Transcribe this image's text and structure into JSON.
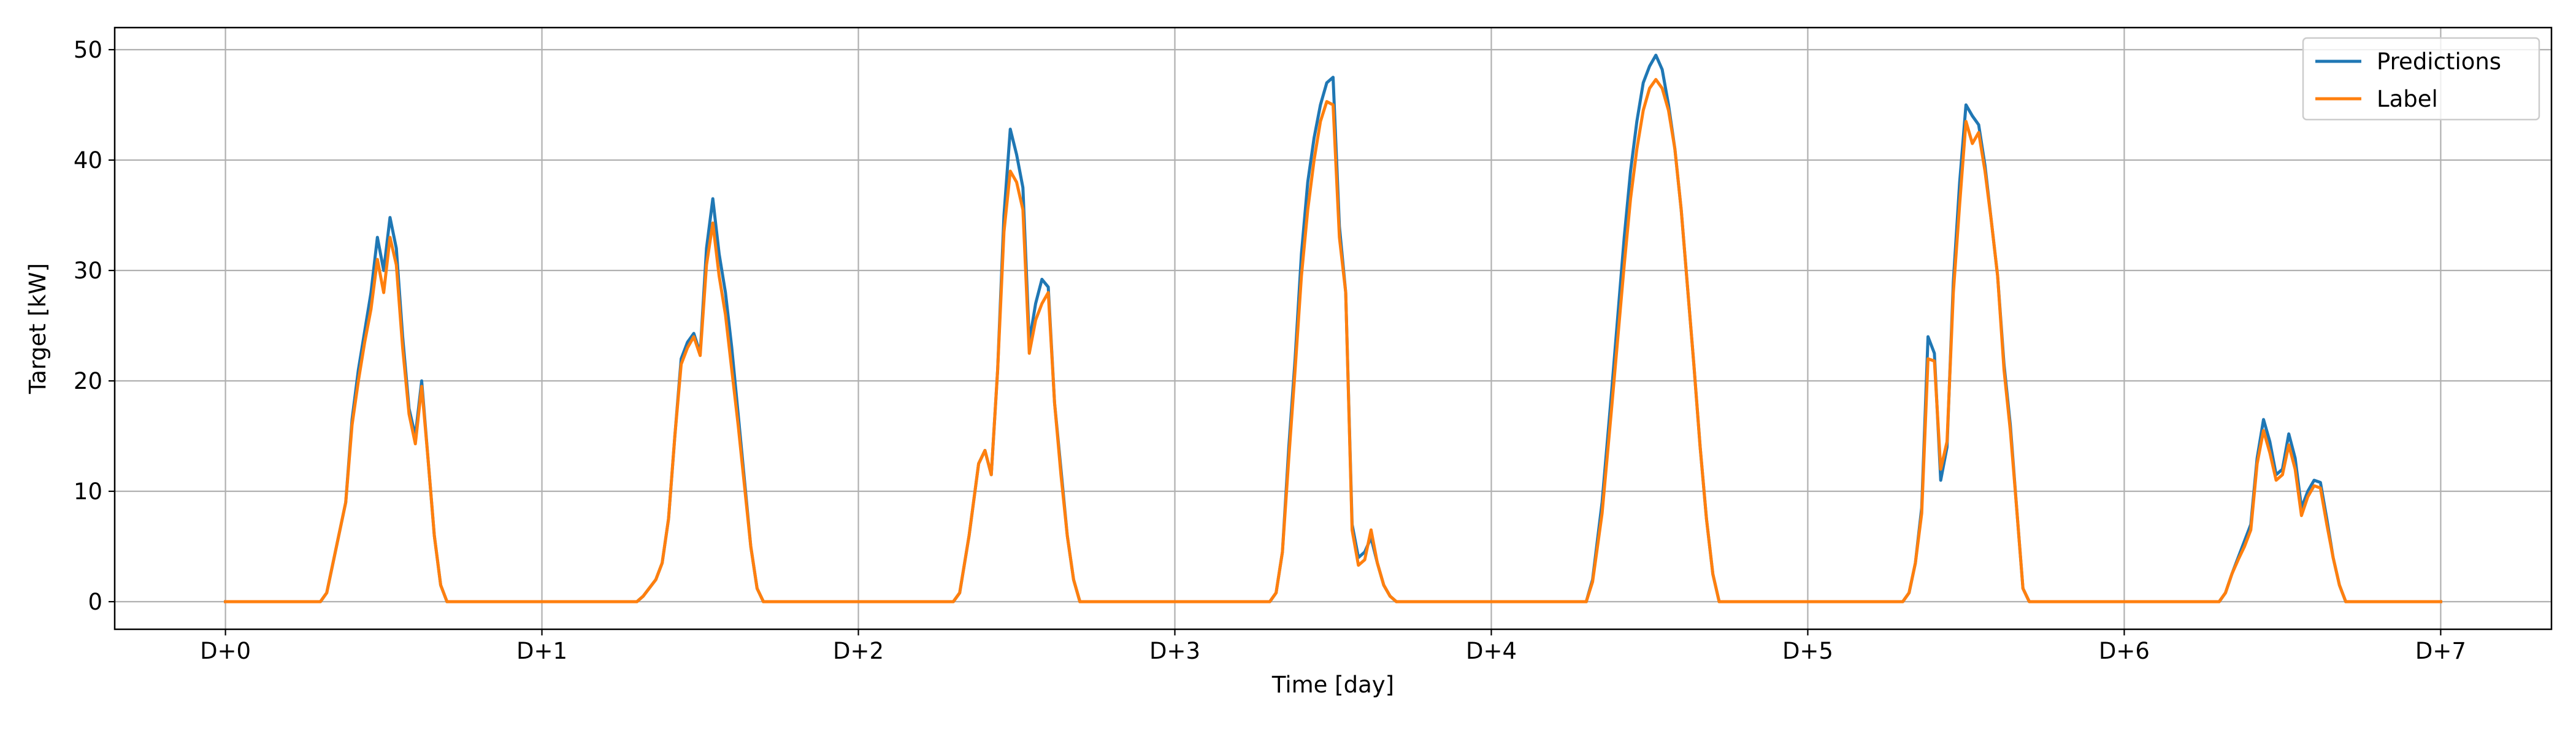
{
  "chart_data": {
    "type": "line",
    "title": "",
    "xlabel": "Time [day]",
    "ylabel": "Target [kW]",
    "xlim": [
      -0.35,
      7.35
    ],
    "ylim": [
      -2.5,
      52
    ],
    "grid": true,
    "legend_position": "top-right",
    "x_ticks": [
      0,
      1,
      2,
      3,
      4,
      5,
      6,
      7
    ],
    "x_tick_labels": [
      "D+0",
      "D+1",
      "D+2",
      "D+3",
      "D+4",
      "D+5",
      "D+6",
      "D+7"
    ],
    "y_ticks": [
      0,
      10,
      20,
      30,
      40,
      50
    ],
    "y_tick_labels": [
      "0",
      "10",
      "20",
      "30",
      "40",
      "50"
    ],
    "series": [
      {
        "name": "Predictions",
        "color": "#1f77b4",
        "points": [
          [
            0,
            0
          ],
          [
            0.3,
            0
          ],
          [
            0.32,
            0.8
          ],
          [
            0.38,
            9
          ],
          [
            0.4,
            16.5
          ],
          [
            0.42,
            21
          ],
          [
            0.44,
            24.5
          ],
          [
            0.46,
            28
          ],
          [
            0.48,
            33
          ],
          [
            0.5,
            30
          ],
          [
            0.52,
            34.8
          ],
          [
            0.54,
            32
          ],
          [
            0.56,
            24
          ],
          [
            0.58,
            17.5
          ],
          [
            0.6,
            15
          ],
          [
            0.62,
            20
          ],
          [
            0.64,
            13
          ],
          [
            0.66,
            6
          ],
          [
            0.68,
            1.5
          ],
          [
            0.7,
            0
          ],
          [
            1.3,
            0
          ],
          [
            1.32,
            0.5
          ],
          [
            1.36,
            2
          ],
          [
            1.38,
            3.5
          ],
          [
            1.4,
            7.5
          ],
          [
            1.42,
            15
          ],
          [
            1.44,
            22
          ],
          [
            1.46,
            23.5
          ],
          [
            1.48,
            24.3
          ],
          [
            1.5,
            22.5
          ],
          [
            1.52,
            32
          ],
          [
            1.54,
            36.5
          ],
          [
            1.56,
            31.5
          ],
          [
            1.58,
            28
          ],
          [
            1.6,
            23
          ],
          [
            1.62,
            17
          ],
          [
            1.64,
            11
          ],
          [
            1.66,
            5
          ],
          [
            1.68,
            1.2
          ],
          [
            1.7,
            0
          ],
          [
            2.3,
            0
          ],
          [
            2.32,
            0.8
          ],
          [
            2.35,
            6
          ],
          [
            2.38,
            12.5
          ],
          [
            2.4,
            13.7
          ],
          [
            2.42,
            11.5
          ],
          [
            2.44,
            21
          ],
          [
            2.46,
            35
          ],
          [
            2.48,
            42.8
          ],
          [
            2.5,
            40.5
          ],
          [
            2.52,
            37.5
          ],
          [
            2.54,
            23.5
          ],
          [
            2.56,
            27
          ],
          [
            2.58,
            29.2
          ],
          [
            2.6,
            28.5
          ],
          [
            2.62,
            18
          ],
          [
            2.64,
            12
          ],
          [
            2.66,
            6
          ],
          [
            2.68,
            2
          ],
          [
            2.7,
            0
          ],
          [
            3.3,
            0
          ],
          [
            3.32,
            0.8
          ],
          [
            3.34,
            4.5
          ],
          [
            3.36,
            14
          ],
          [
            3.38,
            22
          ],
          [
            3.4,
            31.5
          ],
          [
            3.42,
            38
          ],
          [
            3.44,
            42
          ],
          [
            3.46,
            45
          ],
          [
            3.48,
            47
          ],
          [
            3.5,
            47.5
          ],
          [
            3.52,
            34
          ],
          [
            3.54,
            28
          ],
          [
            3.56,
            7
          ],
          [
            3.58,
            4
          ],
          [
            3.6,
            4.5
          ],
          [
            3.62,
            5.8
          ],
          [
            3.64,
            3.5
          ],
          [
            3.66,
            1.5
          ],
          [
            3.68,
            0.5
          ],
          [
            3.7,
            0
          ],
          [
            4.3,
            0
          ],
          [
            4.32,
            2
          ],
          [
            4.35,
            9
          ],
          [
            4.38,
            19
          ],
          [
            4.4,
            26
          ],
          [
            4.42,
            33
          ],
          [
            4.44,
            39
          ],
          [
            4.46,
            43.5
          ],
          [
            4.48,
            47
          ],
          [
            4.5,
            48.5
          ],
          [
            4.52,
            49.5
          ],
          [
            4.54,
            48.2
          ],
          [
            4.56,
            45
          ],
          [
            4.58,
            41
          ],
          [
            4.6,
            35.5
          ],
          [
            4.62,
            28.5
          ],
          [
            4.64,
            21.5
          ],
          [
            4.66,
            14
          ],
          [
            4.68,
            7.5
          ],
          [
            4.7,
            2.5
          ],
          [
            4.72,
            0
          ],
          [
            5.3,
            0
          ],
          [
            5.32,
            0.8
          ],
          [
            5.34,
            3.5
          ],
          [
            5.36,
            8.5
          ],
          [
            5.38,
            24
          ],
          [
            5.4,
            22.5
          ],
          [
            5.42,
            11
          ],
          [
            5.44,
            14
          ],
          [
            5.46,
            29
          ],
          [
            5.48,
            38
          ],
          [
            5.5,
            45
          ],
          [
            5.52,
            44
          ],
          [
            5.54,
            43.2
          ],
          [
            5.56,
            39.5
          ],
          [
            5.58,
            34.5
          ],
          [
            5.6,
            29.5
          ],
          [
            5.62,
            21.5
          ],
          [
            5.64,
            16
          ],
          [
            5.66,
            8.5
          ],
          [
            5.68,
            1.2
          ],
          [
            5.7,
            0
          ],
          [
            6.3,
            0
          ],
          [
            6.32,
            0.8
          ],
          [
            6.34,
            2.5
          ],
          [
            6.36,
            4
          ],
          [
            6.38,
            5.5
          ],
          [
            6.4,
            7
          ],
          [
            6.42,
            13
          ],
          [
            6.44,
            16.5
          ],
          [
            6.46,
            14.5
          ],
          [
            6.48,
            11.5
          ],
          [
            6.5,
            12
          ],
          [
            6.52,
            15.2
          ],
          [
            6.54,
            13
          ],
          [
            6.56,
            8.5
          ],
          [
            6.58,
            10
          ],
          [
            6.6,
            11
          ],
          [
            6.62,
            10.8
          ],
          [
            6.64,
            7.5
          ],
          [
            6.66,
            4
          ],
          [
            6.68,
            1.5
          ],
          [
            6.7,
            0
          ],
          [
            7,
            0
          ]
        ]
      },
      {
        "name": "Label",
        "color": "#ff7f0e",
        "points": [
          [
            0,
            0
          ],
          [
            0.3,
            0
          ],
          [
            0.32,
            0.8
          ],
          [
            0.38,
            9
          ],
          [
            0.4,
            16
          ],
          [
            0.42,
            20
          ],
          [
            0.44,
            23.5
          ],
          [
            0.46,
            26.5
          ],
          [
            0.48,
            31
          ],
          [
            0.5,
            28
          ],
          [
            0.52,
            33
          ],
          [
            0.54,
            30.5
          ],
          [
            0.56,
            23
          ],
          [
            0.58,
            17
          ],
          [
            0.6,
            14.3
          ],
          [
            0.62,
            19.5
          ],
          [
            0.64,
            13
          ],
          [
            0.66,
            6
          ],
          [
            0.68,
            1.5
          ],
          [
            0.7,
            0
          ],
          [
            1.3,
            0
          ],
          [
            1.32,
            0.5
          ],
          [
            1.36,
            2
          ],
          [
            1.38,
            3.5
          ],
          [
            1.4,
            7.5
          ],
          [
            1.42,
            15
          ],
          [
            1.44,
            21.5
          ],
          [
            1.46,
            23
          ],
          [
            1.48,
            24
          ],
          [
            1.5,
            22.3
          ],
          [
            1.52,
            30.5
          ],
          [
            1.54,
            34.3
          ],
          [
            1.56,
            29.5
          ],
          [
            1.58,
            26
          ],
          [
            1.6,
            21
          ],
          [
            1.62,
            16
          ],
          [
            1.64,
            10.5
          ],
          [
            1.66,
            5
          ],
          [
            1.68,
            1.2
          ],
          [
            1.7,
            0
          ],
          [
            2.3,
            0
          ],
          [
            2.32,
            0.8
          ],
          [
            2.35,
            6
          ],
          [
            2.38,
            12.5
          ],
          [
            2.4,
            13.7
          ],
          [
            2.42,
            11.5
          ],
          [
            2.44,
            21
          ],
          [
            2.46,
            33.5
          ],
          [
            2.48,
            39
          ],
          [
            2.5,
            38
          ],
          [
            2.52,
            35.5
          ],
          [
            2.54,
            22.5
          ],
          [
            2.56,
            25.5
          ],
          [
            2.58,
            27
          ],
          [
            2.6,
            28
          ],
          [
            2.62,
            18
          ],
          [
            2.64,
            11.5
          ],
          [
            2.66,
            6
          ],
          [
            2.68,
            2
          ],
          [
            2.7,
            0
          ],
          [
            3.3,
            0
          ],
          [
            3.32,
            0.8
          ],
          [
            3.34,
            4.5
          ],
          [
            3.36,
            13
          ],
          [
            3.38,
            21
          ],
          [
            3.4,
            29.5
          ],
          [
            3.42,
            35.5
          ],
          [
            3.44,
            40
          ],
          [
            3.46,
            43.5
          ],
          [
            3.48,
            45.3
          ],
          [
            3.5,
            45
          ],
          [
            3.52,
            33
          ],
          [
            3.54,
            28
          ],
          [
            3.56,
            6.5
          ],
          [
            3.58,
            3.3
          ],
          [
            3.6,
            3.8
          ],
          [
            3.62,
            6.5
          ],
          [
            3.64,
            3.5
          ],
          [
            3.66,
            1.5
          ],
          [
            3.68,
            0.5
          ],
          [
            3.7,
            0
          ],
          [
            4.3,
            0
          ],
          [
            4.32,
            1.8
          ],
          [
            4.35,
            8
          ],
          [
            4.38,
            17.5
          ],
          [
            4.4,
            24
          ],
          [
            4.42,
            30.5
          ],
          [
            4.44,
            36.5
          ],
          [
            4.46,
            41
          ],
          [
            4.48,
            44.5
          ],
          [
            4.5,
            46.5
          ],
          [
            4.52,
            47.3
          ],
          [
            4.54,
            46.5
          ],
          [
            4.56,
            44.5
          ],
          [
            4.58,
            41
          ],
          [
            4.6,
            35.5
          ],
          [
            4.62,
            28.5
          ],
          [
            4.64,
            21.5
          ],
          [
            4.66,
            14
          ],
          [
            4.68,
            7.5
          ],
          [
            4.7,
            2.5
          ],
          [
            4.72,
            0
          ],
          [
            5.3,
            0
          ],
          [
            5.32,
            0.8
          ],
          [
            5.34,
            3.5
          ],
          [
            5.36,
            8
          ],
          [
            5.38,
            22
          ],
          [
            5.4,
            21.8
          ],
          [
            5.42,
            12
          ],
          [
            5.44,
            14.5
          ],
          [
            5.46,
            28
          ],
          [
            5.48,
            36
          ],
          [
            5.5,
            43.5
          ],
          [
            5.52,
            41.5
          ],
          [
            5.54,
            42.5
          ],
          [
            5.56,
            39
          ],
          [
            5.58,
            34.5
          ],
          [
            5.6,
            29.5
          ],
          [
            5.62,
            21
          ],
          [
            5.64,
            15.5
          ],
          [
            5.66,
            8.5
          ],
          [
            5.68,
            1.2
          ],
          [
            5.7,
            0
          ],
          [
            6.3,
            0
          ],
          [
            6.32,
            0.8
          ],
          [
            6.34,
            2.5
          ],
          [
            6.36,
            3.8
          ],
          [
            6.38,
            5
          ],
          [
            6.4,
            6.5
          ],
          [
            6.42,
            12.5
          ],
          [
            6.44,
            15.5
          ],
          [
            6.46,
            13.5
          ],
          [
            6.48,
            11
          ],
          [
            6.5,
            11.5
          ],
          [
            6.52,
            14.2
          ],
          [
            6.54,
            12
          ],
          [
            6.56,
            7.8
          ],
          [
            6.58,
            9.5
          ],
          [
            6.6,
            10.5
          ],
          [
            6.62,
            10.3
          ],
          [
            6.64,
            7
          ],
          [
            6.66,
            4
          ],
          [
            6.68,
            1.5
          ],
          [
            6.7,
            0
          ],
          [
            7,
            0
          ]
        ]
      }
    ]
  }
}
